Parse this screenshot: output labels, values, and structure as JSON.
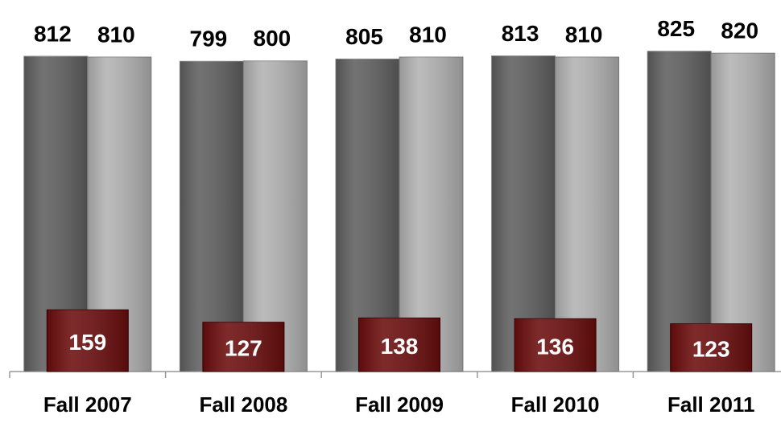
{
  "chart_data": {
    "type": "bar",
    "categories": [
      "Fall 2007",
      "Fall 2008",
      "Fall 2009",
      "Fall 2010",
      "Fall 2011"
    ],
    "series": [
      {
        "color": "#5f5f5f",
        "values": [
          812,
          799,
          805,
          813,
          825
        ]
      },
      {
        "color": "#b2b2b2",
        "values": [
          810,
          800,
          810,
          810,
          820
        ]
      },
      {
        "color": "#6b0d0d",
        "values": [
          159,
          127,
          138,
          136,
          123
        ],
        "overlay": true
      }
    ],
    "ylim": [
      0,
      900
    ]
  }
}
